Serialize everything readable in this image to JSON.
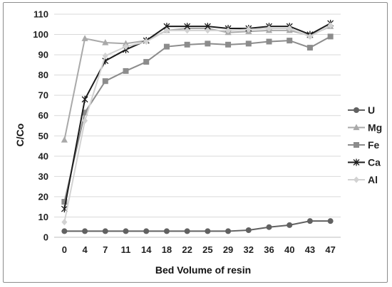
{
  "chart_data": {
    "type": "line",
    "categories": [
      "0",
      "4",
      "7",
      "11",
      "14",
      "18",
      "22",
      "25",
      "29",
      "32",
      "36",
      "40",
      "43",
      "47"
    ],
    "series": [
      {
        "name": "U",
        "color": "#616161",
        "marker": "circle",
        "values": [
          3,
          3,
          3,
          3,
          3,
          3,
          3,
          3,
          3,
          3.5,
          5,
          6,
          8,
          8
        ]
      },
      {
        "name": "Mg",
        "color": "#a9a9a9",
        "marker": "triangle",
        "values": [
          48,
          98,
          96,
          95.5,
          97,
          102,
          103,
          103,
          101,
          101.5,
          102,
          102,
          99.5,
          104
        ]
      },
      {
        "name": "Fe",
        "color": "#8c8c8c",
        "marker": "square",
        "values": [
          17.5,
          61.5,
          77,
          82,
          86.5,
          94,
          95,
          95.5,
          95,
          95.5,
          96.5,
          97,
          93.5,
          99
        ]
      },
      {
        "name": "Ca",
        "color": "#1c1c1c",
        "marker": "star",
        "values": [
          14,
          68,
          87,
          92.5,
          97,
          104,
          104,
          104,
          103,
          103,
          104,
          104,
          100,
          105.5
        ]
      },
      {
        "name": "Al",
        "color": "#d2d2d2",
        "marker": "diamond",
        "values": [
          7.5,
          57.5,
          89.5,
          94,
          96.5,
          102,
          102,
          102,
          102,
          102.5,
          103,
          103,
          99,
          104.5
        ]
      }
    ],
    "title": "",
    "xlabel": "Bed Volume of resin",
    "ylabel": "C/Co",
    "ylim": [
      0,
      110
    ],
    "yticks": [
      0,
      10,
      20,
      30,
      40,
      50,
      60,
      70,
      80,
      90,
      100,
      110
    ],
    "grid": "horizontal",
    "legend": "right"
  }
}
